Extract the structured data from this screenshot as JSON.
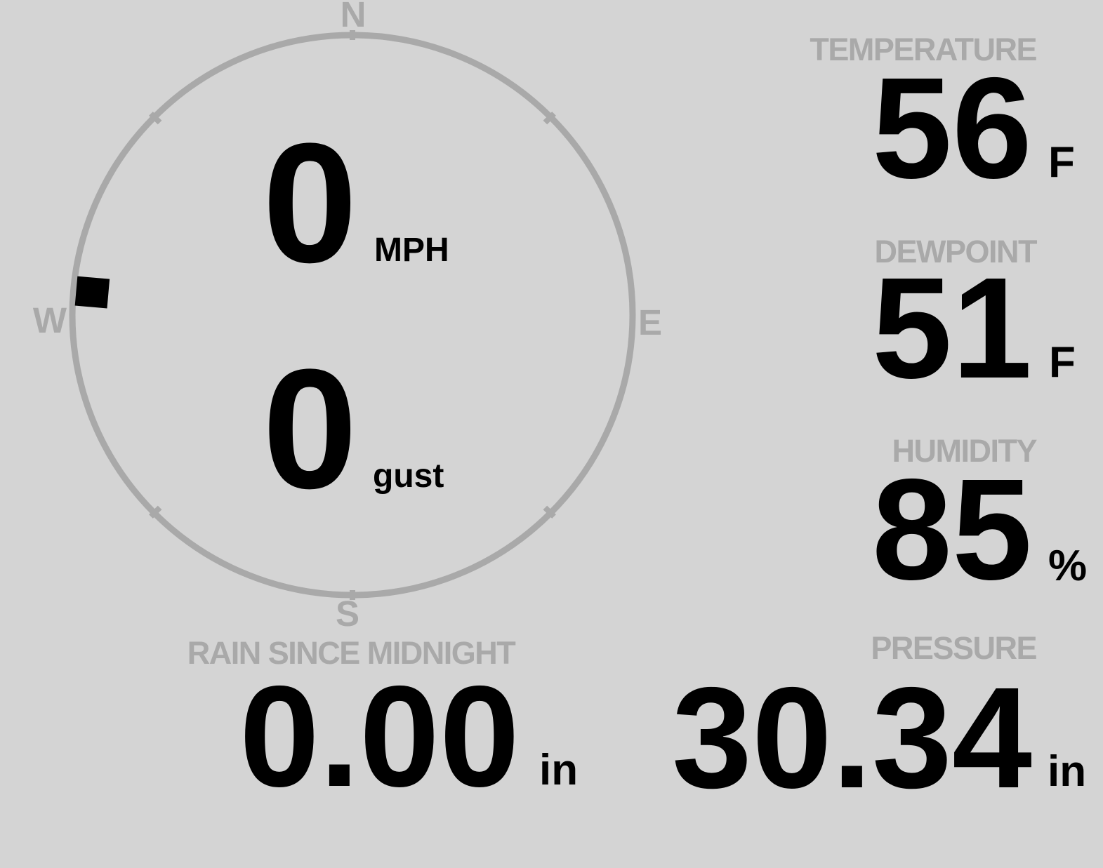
{
  "colors": {
    "background": "#d4d4d4",
    "muted_gray": "#a9a9a9",
    "ink": "#000000"
  },
  "wind": {
    "compass": {
      "north": "N",
      "south": "S",
      "east": "E",
      "west": "W"
    },
    "direction_deg": 275,
    "speed": {
      "value": "0",
      "unit": "MPH"
    },
    "gust": {
      "value": "0",
      "unit": "gust"
    }
  },
  "metrics": {
    "temperature": {
      "label": "TEMPERATURE",
      "value": "56",
      "unit": "F"
    },
    "dewpoint": {
      "label": "DEWPOINT",
      "value": "51",
      "unit": "F"
    },
    "humidity": {
      "label": "HUMIDITY",
      "value": "85",
      "unit": "%"
    },
    "rain": {
      "label": "RAIN SINCE MIDNIGHT",
      "value": "0.00",
      "unit": "in"
    },
    "pressure": {
      "label": "PRESSURE",
      "value": "30.34",
      "unit": "in"
    }
  }
}
